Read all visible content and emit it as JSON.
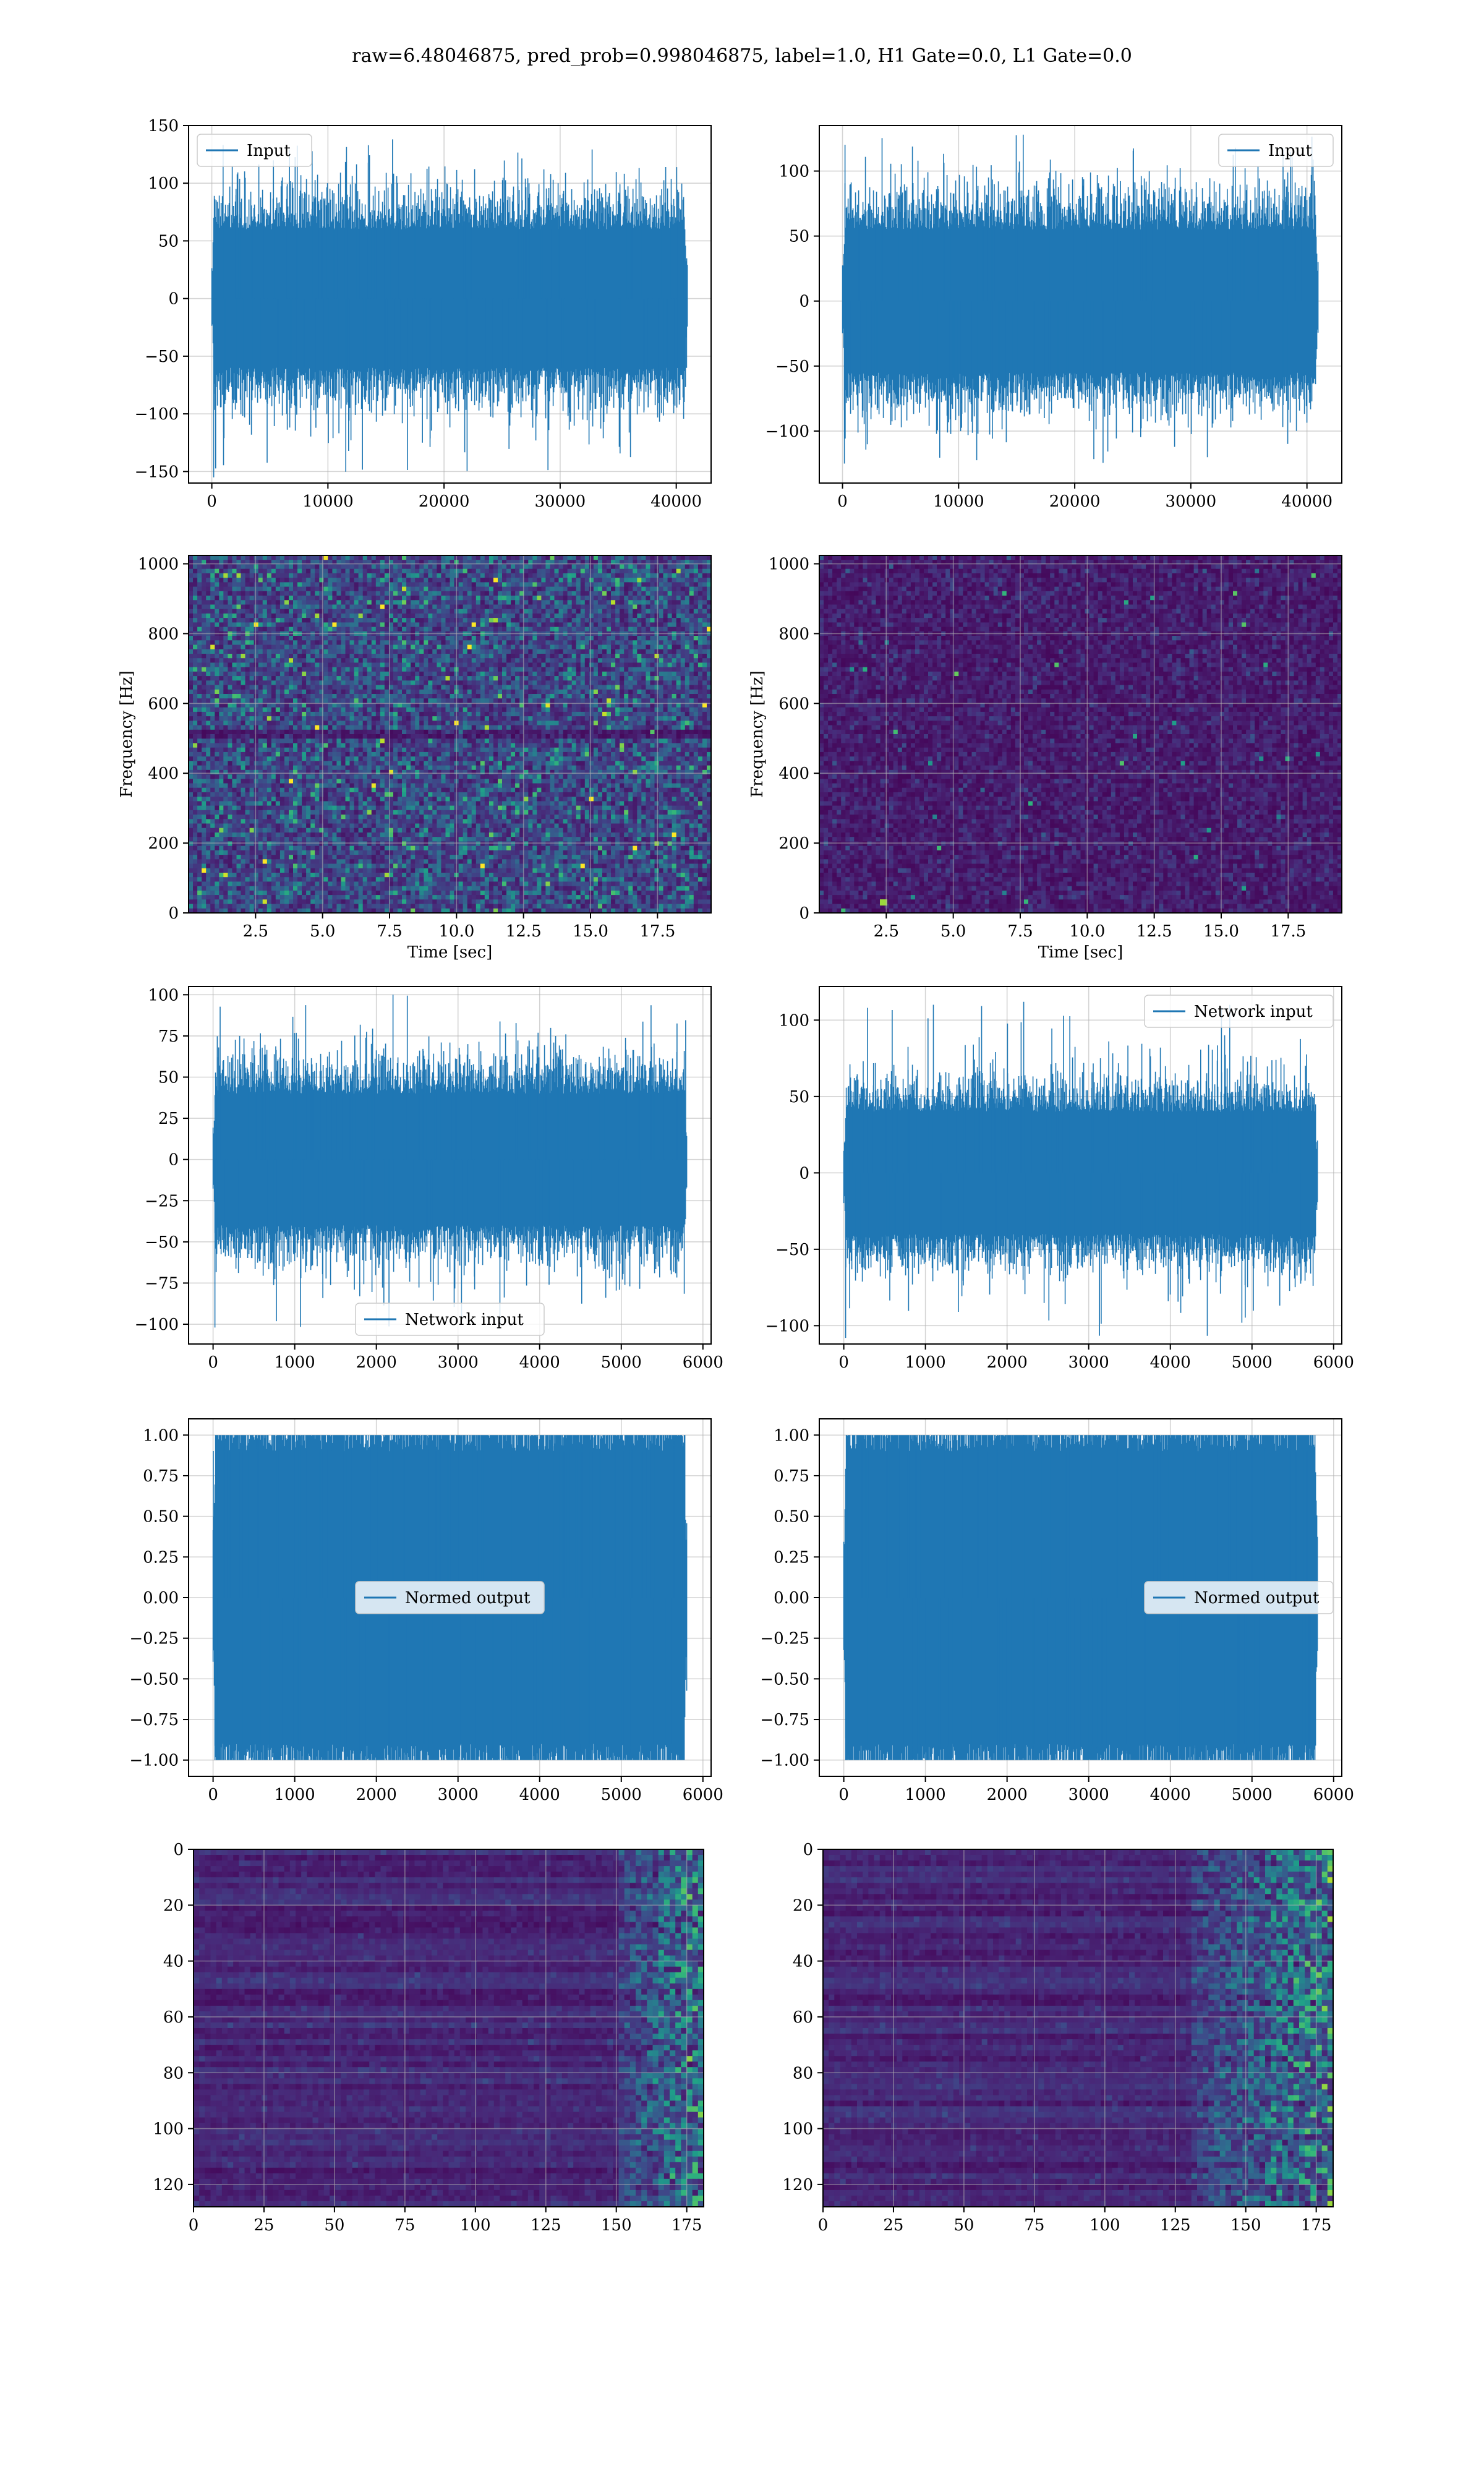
{
  "figure": {
    "suptitle": "raw=6.48046875, pred_prob=0.998046875, label=1.0, H1 Gate=0.0, L1 Gate=0.0"
  },
  "colors": {
    "line": "#1f77b4",
    "grid": "#b0b0b0",
    "spine": "#000000",
    "viridis_low": "#440154",
    "viridis_mid": "#21918c",
    "viridis_high": "#fde725"
  },
  "chart_data": [
    {
      "id": "input-left",
      "type": "line",
      "series": [
        {
          "name": "Input"
        }
      ],
      "xlim": [
        -2000,
        43000
      ],
      "ylim": [
        -160,
        150
      ],
      "xticks": [
        0,
        10000,
        20000,
        30000,
        40000
      ],
      "yticks": [
        -150,
        -100,
        -50,
        0,
        50,
        100,
        150
      ],
      "xtick_labels": [
        "0",
        "10000",
        "20000",
        "30000",
        "40000"
      ],
      "ytick_labels": [
        "−150",
        "−100",
        "−50",
        "0",
        "50",
        "100",
        "150"
      ],
      "legend": "upper left",
      "grid": true,
      "signal": {
        "x_start": 0,
        "x_end": 40960,
        "envelope_low": -60,
        "envelope_high": 60,
        "spike_low": -155,
        "spike_high": 138
      }
    },
    {
      "id": "input-right",
      "type": "line",
      "series": [
        {
          "name": "Input"
        }
      ],
      "xlim": [
        -2000,
        43000
      ],
      "ylim": [
        -140,
        135
      ],
      "xticks": [
        0,
        10000,
        20000,
        30000,
        40000
      ],
      "yticks": [
        -100,
        -50,
        0,
        50,
        100
      ],
      "xtick_labels": [
        "0",
        "10000",
        "20000",
        "30000",
        "40000"
      ],
      "ytick_labels": [
        "−100",
        "−50",
        "0",
        "50",
        "100"
      ],
      "legend": "upper right",
      "grid": true,
      "signal": {
        "x_start": 0,
        "x_end": 40960,
        "envelope_low": -55,
        "envelope_high": 55,
        "spike_low": -125,
        "spike_high": 128
      }
    },
    {
      "id": "spectrogram-left",
      "type": "heatmap",
      "xlim": [
        0,
        19.5
      ],
      "ylim": [
        0,
        1024
      ],
      "xticks": [
        2.5,
        5.0,
        7.5,
        10.0,
        12.5,
        15.0,
        17.5
      ],
      "yticks": [
        0,
        200,
        400,
        600,
        800,
        1000
      ],
      "xtick_labels": [
        "2.5",
        "5.0",
        "7.5",
        "10.0",
        "12.5",
        "15.0",
        "17.5"
      ],
      "ytick_labels": [
        "0",
        "200",
        "400",
        "600",
        "800",
        "1000"
      ],
      "xlabel": "Time [sec]",
      "ylabel": "Frequency [Hz]",
      "colormap": "viridis",
      "intensity": "medium",
      "grid": true
    },
    {
      "id": "spectrogram-right",
      "type": "heatmap",
      "xlim": [
        0,
        19.5
      ],
      "ylim": [
        0,
        1024
      ],
      "xticks": [
        2.5,
        5.0,
        7.5,
        10.0,
        12.5,
        15.0,
        17.5
      ],
      "yticks": [
        0,
        200,
        400,
        600,
        800,
        1000
      ],
      "xtick_labels": [
        "2.5",
        "5.0",
        "7.5",
        "10.0",
        "12.5",
        "15.0",
        "17.5"
      ],
      "ytick_labels": [
        "0",
        "200",
        "400",
        "600",
        "800",
        "1000"
      ],
      "xlabel": "Time [sec]",
      "ylabel": "Frequency [Hz]",
      "colormap": "viridis",
      "intensity": "low",
      "grid": true
    },
    {
      "id": "network-input-left",
      "type": "line",
      "series": [
        {
          "name": "Network input"
        }
      ],
      "xlim": [
        -300,
        6100
      ],
      "ylim": [
        -112,
        105
      ],
      "xticks": [
        0,
        1000,
        2000,
        3000,
        4000,
        5000,
        6000
      ],
      "yticks": [
        -100,
        -75,
        -50,
        -25,
        0,
        25,
        50,
        75,
        100
      ],
      "xtick_labels": [
        "0",
        "1000",
        "2000",
        "3000",
        "4000",
        "5000",
        "6000"
      ],
      "ytick_labels": [
        "−100",
        "−75",
        "−50",
        "−25",
        "0",
        "25",
        "50",
        "75",
        "100"
      ],
      "legend": "lower center",
      "grid": true,
      "signal": {
        "x_start": 0,
        "x_end": 5800,
        "envelope_low": -40,
        "envelope_high": 40,
        "spike_low": -102,
        "spike_high": 100
      }
    },
    {
      "id": "network-input-right",
      "type": "line",
      "series": [
        {
          "name": "Network input"
        }
      ],
      "xlim": [
        -300,
        6100
      ],
      "ylim": [
        -112,
        122
      ],
      "xticks": [
        0,
        1000,
        2000,
        3000,
        4000,
        5000,
        6000
      ],
      "yticks": [
        -100,
        -50,
        0,
        50,
        100
      ],
      "xtick_labels": [
        "0",
        "1000",
        "2000",
        "3000",
        "4000",
        "5000",
        "6000"
      ],
      "ytick_labels": [
        "−100",
        "−50",
        "0",
        "50",
        "100"
      ],
      "legend": "upper right",
      "grid": true,
      "signal": {
        "x_start": 0,
        "x_end": 5800,
        "envelope_low": -40,
        "envelope_high": 40,
        "spike_low": -108,
        "spike_high": 112
      }
    },
    {
      "id": "normed-output-left",
      "type": "line",
      "series": [
        {
          "name": "Normed output"
        }
      ],
      "xlim": [
        -300,
        6100
      ],
      "ylim": [
        -1.1,
        1.1
      ],
      "xticks": [
        0,
        1000,
        2000,
        3000,
        4000,
        5000,
        6000
      ],
      "yticks": [
        -1.0,
        -0.75,
        -0.5,
        -0.25,
        0.0,
        0.25,
        0.5,
        0.75,
        1.0
      ],
      "xtick_labels": [
        "0",
        "1000",
        "2000",
        "3000",
        "4000",
        "5000",
        "6000"
      ],
      "ytick_labels": [
        "−1.00",
        "−0.75",
        "−0.50",
        "−0.25",
        "0.00",
        "0.25",
        "0.50",
        "0.75",
        "1.00"
      ],
      "legend": "center",
      "grid": true,
      "signal": {
        "x_start": 0,
        "x_end": 5800,
        "envelope_low": -0.9,
        "envelope_high": 0.9,
        "spike_low": -1.0,
        "spike_high": 1.0
      }
    },
    {
      "id": "normed-output-right",
      "type": "line",
      "series": [
        {
          "name": "Normed output"
        }
      ],
      "xlim": [
        -300,
        6100
      ],
      "ylim": [
        -1.1,
        1.1
      ],
      "xticks": [
        0,
        1000,
        2000,
        3000,
        4000,
        5000,
        6000
      ],
      "yticks": [
        -1.0,
        -0.75,
        -0.5,
        -0.25,
        0.0,
        0.25,
        0.5,
        0.75,
        1.0
      ],
      "xtick_labels": [
        "0",
        "1000",
        "2000",
        "3000",
        "4000",
        "5000",
        "6000"
      ],
      "ytick_labels": [
        "−1.00",
        "−0.75",
        "−0.50",
        "−0.25",
        "0.00",
        "0.25",
        "0.50",
        "0.75",
        "1.00"
      ],
      "legend": "center right",
      "grid": true,
      "signal": {
        "x_start": 0,
        "x_end": 5800,
        "envelope_low": -0.9,
        "envelope_high": 0.9,
        "spike_low": -1.0,
        "spike_high": 1.0
      }
    },
    {
      "id": "feature-map-left",
      "type": "heatmap",
      "xlim": [
        0,
        181
      ],
      "ylim": [
        128,
        0
      ],
      "xticks": [
        0,
        25,
        50,
        75,
        100,
        125,
        150,
        175
      ],
      "yticks": [
        0,
        20,
        40,
        60,
        80,
        100,
        120
      ],
      "xtick_labels": [
        "0",
        "25",
        "50",
        "75",
        "100",
        "125",
        "150",
        "175"
      ],
      "ytick_labels": [
        "0",
        "20",
        "40",
        "60",
        "80",
        "100",
        "120"
      ],
      "colormap": "viridis",
      "bright_region": "x > 150",
      "grid": true
    },
    {
      "id": "feature-map-right",
      "type": "heatmap",
      "xlim": [
        0,
        181
      ],
      "ylim": [
        128,
        0
      ],
      "xticks": [
        0,
        25,
        50,
        75,
        100,
        125,
        150,
        175
      ],
      "yticks": [
        0,
        20,
        40,
        60,
        80,
        100,
        120
      ],
      "xtick_labels": [
        "0",
        "25",
        "50",
        "75",
        "100",
        "125",
        "150",
        "175"
      ],
      "ytick_labels": [
        "0",
        "20",
        "40",
        "60",
        "80",
        "100",
        "120"
      ],
      "colormap": "viridis",
      "bright_region": "x > 130",
      "grid": true
    }
  ]
}
